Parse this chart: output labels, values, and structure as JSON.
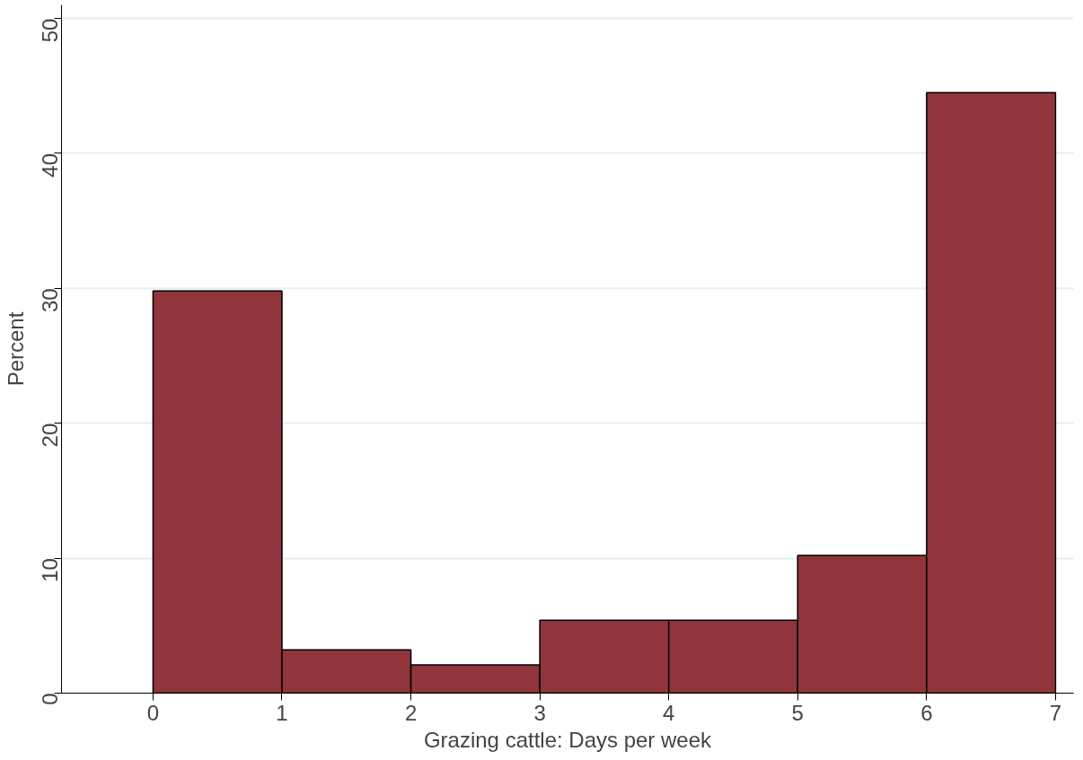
{
  "chart_data": {
    "type": "histogram",
    "xlabel": "Grazing cattle: Days per week",
    "ylabel": "Percent",
    "bins": [
      0,
      1,
      2,
      3,
      4,
      5,
      6,
      7
    ],
    "values": [
      29.8,
      3.2,
      2.1,
      5.4,
      5.4,
      10.2,
      44.5
    ],
    "color": "#8f353b",
    "xlim": [
      -0.71,
      7.14
    ],
    "xticks": [
      0,
      1,
      2,
      3,
      4,
      5,
      6,
      7
    ],
    "ylim": [
      0,
      51
    ],
    "yticks": [
      0,
      10,
      20,
      30,
      40,
      50
    ],
    "grid": "y"
  }
}
